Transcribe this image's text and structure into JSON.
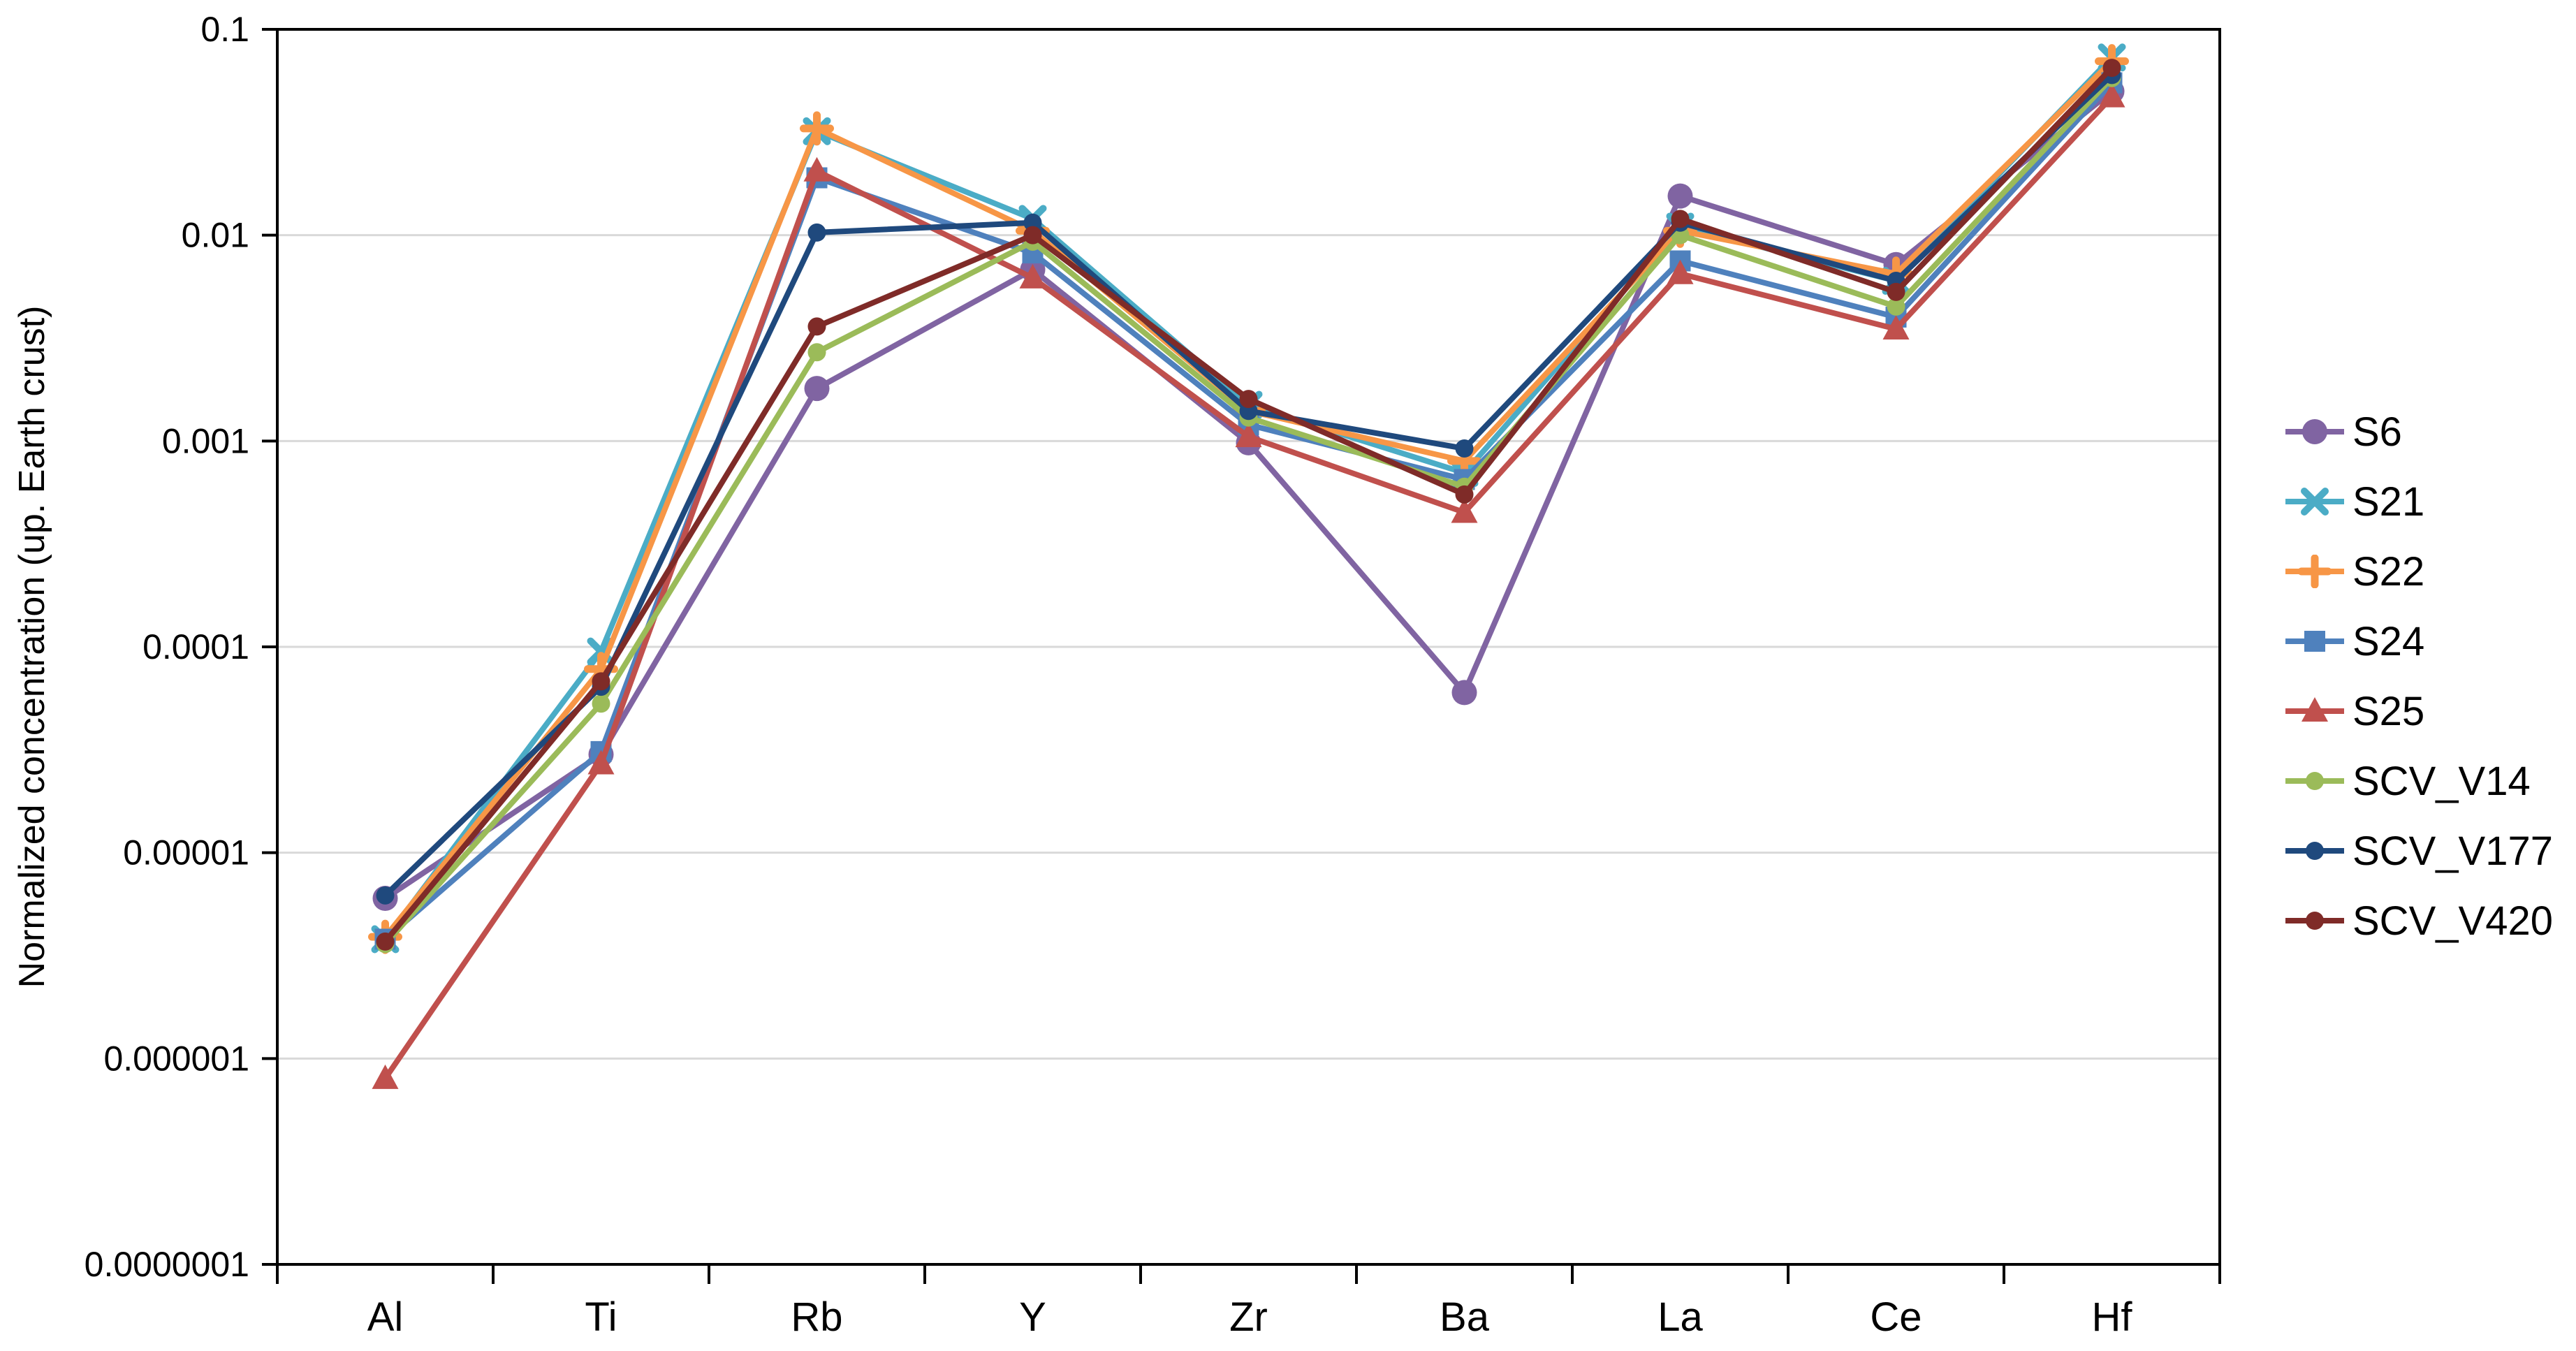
{
  "chart_data": {
    "type": "line",
    "title": "",
    "xlabel": "",
    "ylabel": "Normalized concentration (up. Earth crust)",
    "y_scale": "log",
    "ylim": [
      1e-07,
      0.1
    ],
    "y_tick_labels": [
      "0.1",
      "0.01",
      "0.001",
      "0.0001",
      "0.00001",
      "0.000001",
      "0.0000001"
    ],
    "grid": "horizontal",
    "legend_position": "right",
    "categories": [
      "Al",
      "Ti",
      "Rb",
      "Y",
      "Zr",
      "Ba",
      "La",
      "Ce",
      "Hf"
    ],
    "series": [
      {
        "name": "S6",
        "color": "#8064A2",
        "marker": "circle",
        "values": [
          6e-06,
          3e-05,
          0.0018,
          0.0068,
          0.00098,
          6e-05,
          0.0155,
          0.0072,
          0.05
        ]
      },
      {
        "name": "S21",
        "color": "#4BACC6",
        "marker": "x",
        "values": [
          3.8e-06,
          9.5e-05,
          0.032,
          0.012,
          0.0015,
          0.0007,
          0.011,
          0.006,
          0.073
        ]
      },
      {
        "name": "S22",
        "color": "#F79646",
        "marker": "plus",
        "values": [
          3.9e-06,
          7.8e-05,
          0.033,
          0.0105,
          0.0014,
          0.0008,
          0.0105,
          0.0065,
          0.07
        ]
      },
      {
        "name": "S24",
        "color": "#4F81BD",
        "marker": "square",
        "values": [
          3.8e-06,
          3.1e-05,
          0.019,
          0.0082,
          0.0012,
          0.00065,
          0.0075,
          0.004,
          0.055
        ]
      },
      {
        "name": "S25",
        "color": "#C0504D",
        "marker": "triangle",
        "values": [
          8e-07,
          2.7e-05,
          0.0205,
          0.0062,
          0.00105,
          0.00045,
          0.0065,
          0.0035,
          0.047
        ]
      },
      {
        "name": "SCV_V14",
        "color": "#9BBB59",
        "marker": "dot",
        "values": [
          3.6e-06,
          5.3e-05,
          0.0027,
          0.0093,
          0.0013,
          0.0006,
          0.01,
          0.0045,
          0.058
        ]
      },
      {
        "name": "SCV_V177",
        "color": "#1F497D",
        "marker": "dot",
        "values": [
          6.2e-06,
          6.4e-05,
          0.0103,
          0.0115,
          0.0014,
          0.00092,
          0.0115,
          0.006,
          0.06
        ]
      },
      {
        "name": "SCV_V420",
        "color": "#7F2B28",
        "marker": "dot",
        "values": [
          3.7e-06,
          6.8e-05,
          0.0036,
          0.01,
          0.0016,
          0.00055,
          0.012,
          0.0053,
          0.065
        ]
      }
    ]
  },
  "style_colors": {
    "gridline": "#D9D9D9",
    "axis": "#000000",
    "background": "#FFFFFF"
  }
}
